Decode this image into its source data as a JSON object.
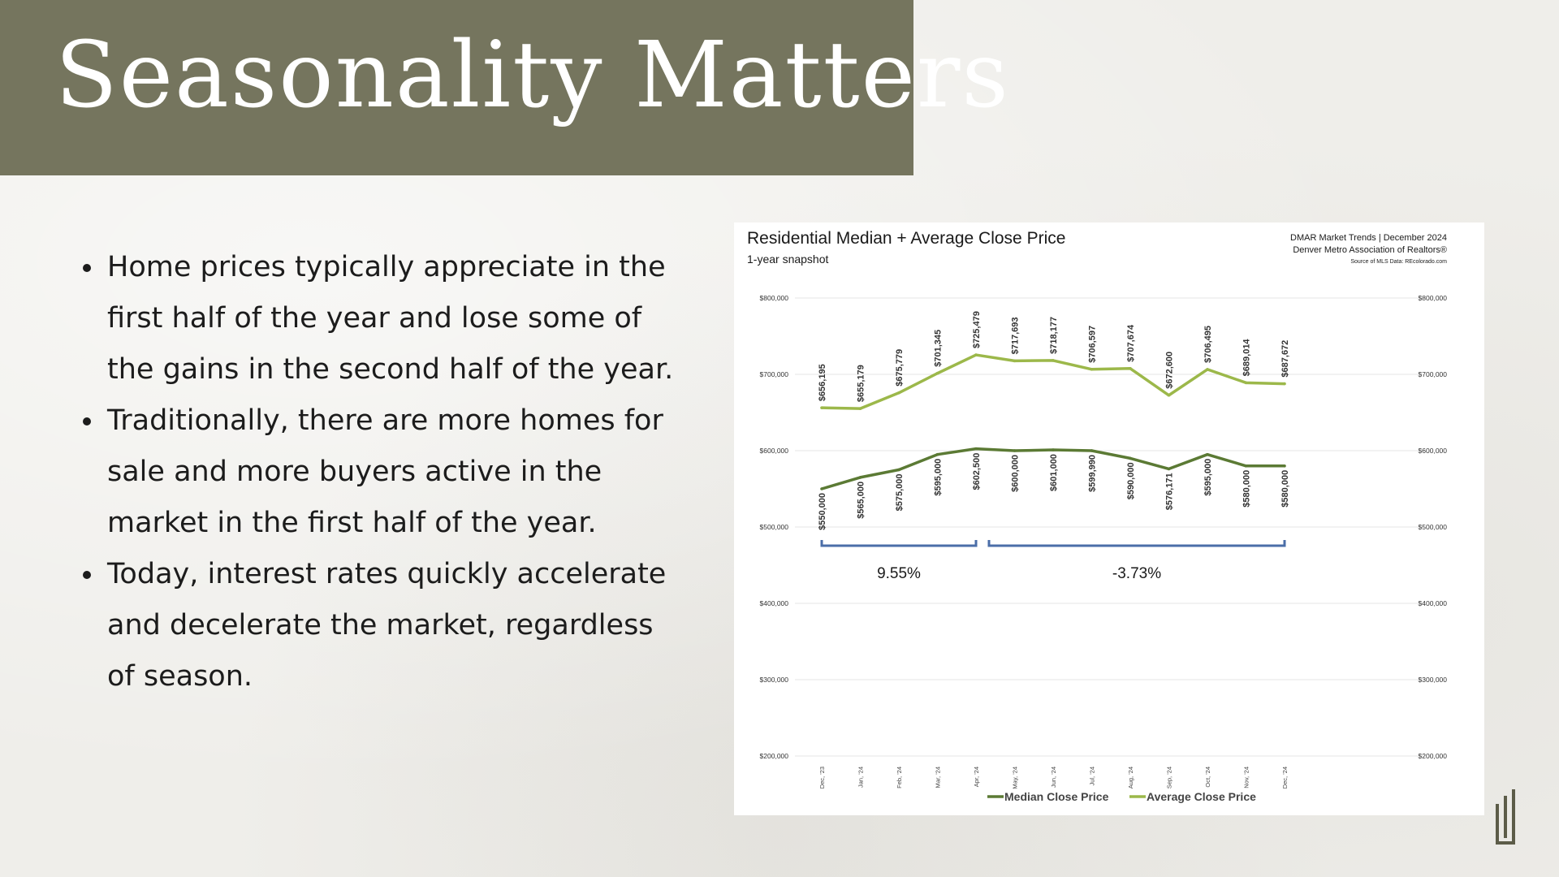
{
  "slide": {
    "title": "Seasonality Matters",
    "bullets": [
      "Home prices typically appreciate in the first half of the year and lose some of the gains in the second half of the year.",
      "Traditionally, there are more homes for sale and more buyers active in the market in the first half of the year.",
      "Today, interest rates quickly accelerate and decelerate the market, regardless of season."
    ]
  },
  "colors": {
    "title_band": "#75755e",
    "median_line": "#5b7a34",
    "average_line": "#9cb84a",
    "bracket": "#4b6ea8"
  },
  "chart_data": {
    "type": "line",
    "title": "Residential Median + Average Close Price",
    "subtitle": "1-year snapshot",
    "source_line1": "DMAR Market Trends | December 2024",
    "source_line2": "Denver Metro Association of Realtors®",
    "source_line3": "Source of MLS Data: REcolorado.com",
    "categories": [
      "Dec, '23",
      "Jan, '24",
      "Feb, '24",
      "Mar, '24",
      "Apr, '24",
      "May, '24",
      "Jun, '24",
      "Jul, '24",
      "Aug, '24",
      "Sep, '24",
      "Oct, '24",
      "Nov, '24",
      "Dec, '24"
    ],
    "ylim": [
      200000,
      800000
    ],
    "yticks": [
      "$800,000",
      "$700,000",
      "$600,000",
      "$500,000",
      "$400,000",
      "$300,000",
      "$200,000"
    ],
    "ytick_values": [
      800000,
      700000,
      600000,
      500000,
      400000,
      300000,
      200000
    ],
    "grid": true,
    "legend_position": "bottom",
    "series": [
      {
        "name": "Median Close Price",
        "values": [
          550000,
          565000,
          575000,
          595000,
          602500,
          600000,
          601000,
          599990,
          590000,
          576171,
          595000,
          580000,
          580000
        ],
        "labels": [
          "$550,000",
          "$565,000",
          "$575,000",
          "$595,000",
          "$602,500",
          "$600,000",
          "$601,000",
          "$599,990",
          "$590,000",
          "$576,171",
          "$595,000",
          "$580,000",
          "$580,000"
        ]
      },
      {
        "name": "Average Close Price",
        "values": [
          656195,
          655179,
          675779,
          701345,
          725479,
          717693,
          718177,
          706597,
          707674,
          672600,
          706495,
          689014,
          687672
        ],
        "labels": [
          "$656,195",
          "$655,179",
          "$675,779",
          "$701,345",
          "$725,479",
          "$717,693",
          "$718,177",
          "$706,597",
          "$707,674",
          "$672,600",
          "$706,495",
          "$689,014",
          "$687,672"
        ]
      }
    ],
    "annotations": [
      {
        "text": "9.55%",
        "from_category": 0,
        "to_category": 4
      },
      {
        "text": "-3.73%",
        "from_category": 4,
        "to_category": 12
      }
    ]
  }
}
